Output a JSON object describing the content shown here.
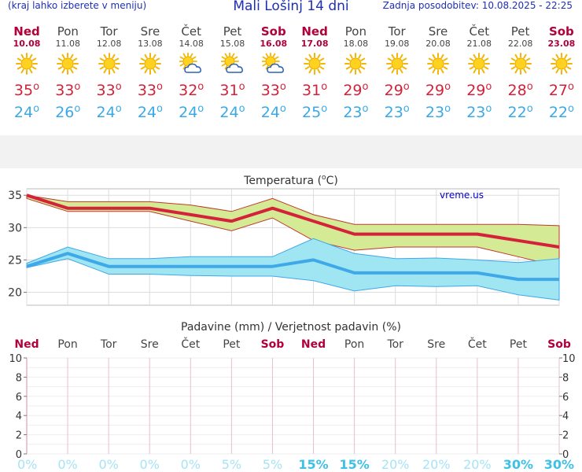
{
  "header": {
    "left": "(kraj lahko izberete v meniju)",
    "title": "Mali Lošinj 14 dni",
    "right": "Zadnja posodobitev: 10.08.2025 - 22:25"
  },
  "days": [
    {
      "name": "Ned",
      "date": "10.08",
      "weekend": true,
      "icon": "sun-icon",
      "max": "35",
      "min": "24"
    },
    {
      "name": "Pon",
      "date": "11.08",
      "weekend": false,
      "icon": "sun-icon",
      "max": "33",
      "min": "26"
    },
    {
      "name": "Tor",
      "date": "12.08",
      "weekend": false,
      "icon": "sun-icon",
      "max": "33",
      "min": "24"
    },
    {
      "name": "Sre",
      "date": "13.08",
      "weekend": false,
      "icon": "sun-icon",
      "max": "33",
      "min": "24"
    },
    {
      "name": "Čet",
      "date": "14.08",
      "weekend": false,
      "icon": "partly-cloudy-icon",
      "max": "32",
      "min": "24"
    },
    {
      "name": "Pet",
      "date": "15.08",
      "weekend": false,
      "icon": "partly-cloudy-icon",
      "max": "31",
      "min": "24"
    },
    {
      "name": "Sob",
      "date": "16.08",
      "weekend": true,
      "icon": "partly-cloudy-icon",
      "max": "33",
      "min": "24"
    },
    {
      "name": "Ned",
      "date": "17.08",
      "weekend": true,
      "icon": "sun-icon",
      "max": "31",
      "min": "25"
    },
    {
      "name": "Pon",
      "date": "18.08",
      "weekend": false,
      "icon": "sun-icon",
      "max": "29",
      "min": "23"
    },
    {
      "name": "Tor",
      "date": "19.08",
      "weekend": false,
      "icon": "sun-icon",
      "max": "29",
      "min": "23"
    },
    {
      "name": "Sre",
      "date": "20.08",
      "weekend": false,
      "icon": "sun-icon",
      "max": "29",
      "min": "23"
    },
    {
      "name": "Čet",
      "date": "21.08",
      "weekend": false,
      "icon": "sun-icon",
      "max": "29",
      "min": "23"
    },
    {
      "name": "Pet",
      "date": "22.08",
      "weekend": false,
      "icon": "sun-icon",
      "max": "28",
      "min": "22"
    },
    {
      "name": "Sob",
      "date": "23.08",
      "weekend": true,
      "icon": "sun-icon",
      "max": "27",
      "min": "22"
    }
  ],
  "degree_symbol": "o",
  "colors": {
    "weekend": "#b2003a",
    "weekday": "#444444",
    "max": "#d3223a",
    "min": "#3aa9e6",
    "max_band": "#d5ea95",
    "min_band": "#9fe6f2",
    "min_line": "#3fa8e8",
    "prob": "#7fd8f0"
  },
  "chart_data": [
    {
      "type": "line",
      "title": "Temperatura (oC)",
      "title_prefix": "Temperatura (",
      "title_unit": "C)",
      "watermark": "vreme.us",
      "x": [
        "10.08",
        "11.08",
        "12.08",
        "13.08",
        "14.08",
        "15.08",
        "16.08",
        "17.08",
        "18.08",
        "19.08",
        "20.08",
        "21.08",
        "22.08",
        "23.08"
      ],
      "ylim": [
        18,
        36
      ],
      "yticks": [
        "20",
        "25",
        "30",
        "35"
      ],
      "series": [
        {
          "name": "max",
          "values": [
            35,
            33,
            33,
            33,
            32,
            31,
            33,
            31,
            29,
            29,
            29,
            29,
            28,
            27
          ],
          "range_high": [
            35,
            34,
            34,
            34,
            33.5,
            32.5,
            34.5,
            32,
            30.5,
            30.5,
            30.5,
            30.5,
            30.5,
            30.3
          ],
          "range_low": [
            34.5,
            32.5,
            32.5,
            32.5,
            31,
            29.5,
            31.5,
            28,
            26.5,
            27,
            27,
            27,
            25.5,
            24
          ]
        },
        {
          "name": "min",
          "values": [
            24,
            26,
            24,
            24,
            24,
            24,
            24,
            25,
            23,
            23,
            23,
            23,
            22,
            22
          ],
          "range_high": [
            24.5,
            27,
            25.2,
            25.2,
            25.5,
            25.5,
            25.5,
            28.3,
            26,
            25.2,
            25.3,
            25,
            24.6,
            25.2
          ],
          "range_low": [
            23.8,
            25.2,
            22.8,
            22.8,
            22.6,
            22.5,
            22.5,
            21.8,
            20.2,
            21,
            20.9,
            21,
            19.6,
            18.8
          ]
        }
      ]
    },
    {
      "type": "bar",
      "title": "Padavine (mm) / Verjetnost padavin (%)",
      "categories": [
        "Ned",
        "Pon",
        "Tor",
        "Sre",
        "Čet",
        "Pet",
        "Sob",
        "Ned",
        "Pon",
        "Tor",
        "Sre",
        "Čet",
        "Pet",
        "Sob"
      ],
      "weekend": [
        true,
        false,
        false,
        false,
        false,
        false,
        true,
        true,
        false,
        false,
        false,
        false,
        false,
        true
      ],
      "values": [
        0,
        0,
        0,
        0,
        0,
        0,
        0,
        0,
        0,
        0,
        0,
        0,
        0,
        0
      ],
      "probability": [
        "0%",
        "0%",
        "0%",
        "0%",
        "0%",
        "5%",
        "5%",
        "15%",
        "15%",
        "20%",
        "20%",
        "20%",
        "30%",
        "30%"
      ],
      "probability_bold": [
        false,
        false,
        false,
        false,
        false,
        false,
        false,
        true,
        true,
        false,
        false,
        false,
        true,
        true
      ],
      "ylim": [
        0,
        10
      ],
      "yticks": [
        "0",
        "2",
        "4",
        "6",
        "8",
        "10"
      ]
    }
  ]
}
